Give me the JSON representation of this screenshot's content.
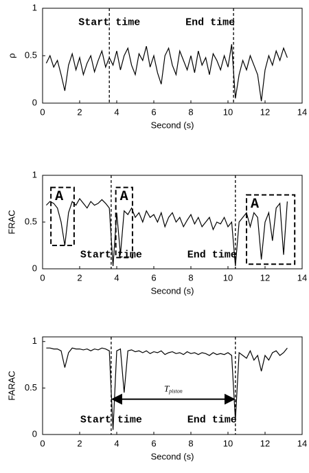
{
  "chart_data": [
    {
      "type": "line",
      "ylabel": "ρ",
      "xlabel": "Second (s)",
      "color": "#000000",
      "xlim": [
        0,
        14
      ],
      "ylim": [
        0,
        1
      ],
      "xticks": [
        0,
        2,
        4,
        6,
        8,
        10,
        12,
        14
      ],
      "yticks": [
        0,
        0.5,
        1
      ],
      "x": [
        0.2,
        0.4,
        0.6,
        0.8,
        1.0,
        1.2,
        1.4,
        1.6,
        1.8,
        2.0,
        2.2,
        2.4,
        2.6,
        2.8,
        3.0,
        3.2,
        3.4,
        3.6,
        3.8,
        4.0,
        4.2,
        4.4,
        4.6,
        4.8,
        5.0,
        5.2,
        5.4,
        5.6,
        5.8,
        6.0,
        6.2,
        6.4,
        6.6,
        6.8,
        7.0,
        7.2,
        7.4,
        7.6,
        7.8,
        8.0,
        8.2,
        8.4,
        8.6,
        8.8,
        9.0,
        9.2,
        9.4,
        9.6,
        9.8,
        10.0,
        10.2,
        10.4,
        10.6,
        10.8,
        11.0,
        11.2,
        11.4,
        11.6,
        11.8,
        12.0,
        12.2,
        12.4,
        12.6,
        12.8,
        13.0,
        13.2
      ],
      "values": [
        0.42,
        0.5,
        0.38,
        0.45,
        0.3,
        0.13,
        0.4,
        0.52,
        0.35,
        0.48,
        0.3,
        0.42,
        0.5,
        0.33,
        0.45,
        0.55,
        0.38,
        0.48,
        0.4,
        0.55,
        0.35,
        0.5,
        0.58,
        0.4,
        0.3,
        0.52,
        0.45,
        0.6,
        0.38,
        0.5,
        0.32,
        0.2,
        0.5,
        0.58,
        0.4,
        0.3,
        0.55,
        0.45,
        0.35,
        0.5,
        0.32,
        0.55,
        0.4,
        0.48,
        0.3,
        0.52,
        0.45,
        0.35,
        0.5,
        0.38,
        0.62,
        0.05,
        0.3,
        0.45,
        0.35,
        0.5,
        0.4,
        0.3,
        0.02,
        0.35,
        0.5,
        0.4,
        0.55,
        0.45,
        0.58,
        0.48
      ],
      "events": [
        {
          "label": "Start time",
          "time": 3.6
        },
        {
          "label": "End time",
          "time": 10.3
        }
      ]
    },
    {
      "type": "line",
      "ylabel": "FRAC",
      "xlabel": "Second (s)",
      "color": "#000000",
      "xlim": [
        0,
        14
      ],
      "ylim": [
        0,
        1
      ],
      "xticks": [
        0,
        2,
        4,
        6,
        8,
        10,
        12,
        14
      ],
      "yticks": [
        0,
        0.5,
        1
      ],
      "x": [
        0.2,
        0.4,
        0.6,
        0.8,
        1.0,
        1.2,
        1.4,
        1.6,
        1.8,
        2.0,
        2.2,
        2.4,
        2.6,
        2.8,
        3.0,
        3.2,
        3.4,
        3.6,
        3.8,
        4.0,
        4.2,
        4.4,
        4.6,
        4.8,
        5.0,
        5.2,
        5.4,
        5.6,
        5.8,
        6.0,
        6.2,
        6.4,
        6.6,
        6.8,
        7.0,
        7.2,
        7.4,
        7.6,
        7.8,
        8.0,
        8.2,
        8.4,
        8.6,
        8.8,
        9.0,
        9.2,
        9.4,
        9.6,
        9.8,
        10.0,
        10.2,
        10.4,
        10.6,
        10.8,
        11.0,
        11.2,
        11.4,
        11.6,
        11.8,
        12.0,
        12.2,
        12.4,
        12.6,
        12.8,
        13.0,
        13.2
      ],
      "values": [
        0.68,
        0.72,
        0.7,
        0.65,
        0.5,
        0.25,
        0.6,
        0.72,
        0.68,
        0.75,
        0.7,
        0.65,
        0.72,
        0.68,
        0.7,
        0.74,
        0.7,
        0.65,
        0.03,
        0.6,
        0.15,
        0.62,
        0.58,
        0.65,
        0.55,
        0.6,
        0.5,
        0.62,
        0.55,
        0.58,
        0.5,
        0.6,
        0.45,
        0.55,
        0.6,
        0.5,
        0.55,
        0.45,
        0.52,
        0.58,
        0.48,
        0.55,
        0.45,
        0.5,
        0.55,
        0.42,
        0.5,
        0.48,
        0.55,
        0.45,
        0.5,
        0.03,
        0.5,
        0.55,
        0.6,
        0.45,
        0.6,
        0.55,
        0.1,
        0.5,
        0.6,
        0.3,
        0.65,
        0.7,
        0.15,
        0.72
      ],
      "events": [
        {
          "label": "Start time",
          "time": 3.7
        },
        {
          "label": "End time",
          "time": 10.4
        }
      ],
      "boxes": [
        {
          "label": "A",
          "x": [
            0.45,
            1.7
          ],
          "y": [
            0.25,
            0.87
          ]
        },
        {
          "label": "A",
          "x": [
            3.95,
            4.85
          ],
          "y": [
            0.12,
            0.87
          ]
        },
        {
          "label": "A",
          "x": [
            11.0,
            13.6
          ],
          "y": [
            0.05,
            0.79
          ]
        }
      ]
    },
    {
      "type": "line",
      "ylabel": "FARAC",
      "xlabel": "Second (s)",
      "color": "#000000",
      "xlim": [
        0,
        14
      ],
      "ylim": [
        0,
        1.05
      ],
      "xticks": [
        0,
        2,
        4,
        6,
        8,
        10,
        12,
        14
      ],
      "yticks": [
        0,
        0.5,
        1
      ],
      "x": [
        0.2,
        0.4,
        0.6,
        0.8,
        1.0,
        1.2,
        1.4,
        1.6,
        1.8,
        2.0,
        2.2,
        2.4,
        2.6,
        2.8,
        3.0,
        3.2,
        3.4,
        3.6,
        3.8,
        4.0,
        4.2,
        4.4,
        4.6,
        4.8,
        5.0,
        5.2,
        5.4,
        5.6,
        5.8,
        6.0,
        6.2,
        6.4,
        6.6,
        6.8,
        7.0,
        7.2,
        7.4,
        7.6,
        7.8,
        8.0,
        8.2,
        8.4,
        8.6,
        8.8,
        9.0,
        9.2,
        9.4,
        9.6,
        9.8,
        10.0,
        10.2,
        10.4,
        10.6,
        10.8,
        11.0,
        11.2,
        11.4,
        11.6,
        11.8,
        12.0,
        12.2,
        12.4,
        12.6,
        12.8,
        13.0,
        13.2
      ],
      "values": [
        0.93,
        0.93,
        0.92,
        0.92,
        0.9,
        0.72,
        0.88,
        0.93,
        0.92,
        0.92,
        0.91,
        0.92,
        0.9,
        0.92,
        0.91,
        0.93,
        0.92,
        0.9,
        0.05,
        0.9,
        0.92,
        0.45,
        0.9,
        0.91,
        0.89,
        0.9,
        0.88,
        0.9,
        0.87,
        0.89,
        0.88,
        0.9,
        0.86,
        0.88,
        0.89,
        0.87,
        0.88,
        0.86,
        0.89,
        0.87,
        0.88,
        0.86,
        0.88,
        0.87,
        0.85,
        0.88,
        0.86,
        0.87,
        0.86,
        0.88,
        0.85,
        0.15,
        0.88,
        0.85,
        0.82,
        0.9,
        0.8,
        0.85,
        0.68,
        0.85,
        0.8,
        0.88,
        0.9,
        0.85,
        0.88,
        0.93
      ],
      "events": [
        {
          "label": "Start time",
          "time": 3.7
        },
        {
          "label": "End time",
          "time": 10.4
        }
      ],
      "span": {
        "label": "T",
        "sub": "piston",
        "from": 3.7,
        "to": 10.4,
        "y": 0.38
      }
    }
  ]
}
